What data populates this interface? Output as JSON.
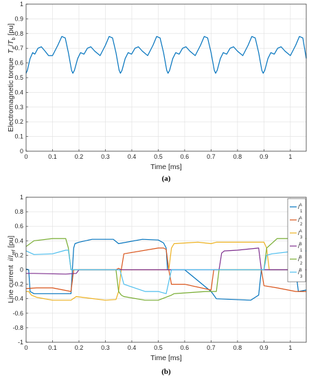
{
  "chart_data": [
    {
      "type": "line",
      "x_unit_label": "Time [ms]",
      "ylabel": "Electromagnetic torque",
      "ylabel_sym": "T",
      "ylabel_sub1": "e",
      "ylabel_slash": "/",
      "ylabel_sym2": "T",
      "ylabel_sub2": "b",
      "ylabel_unit": "[pu]",
      "caption": "(a)",
      "xlim": [
        0,
        1.06
      ],
      "ylim": [
        0,
        1
      ],
      "xticks": [
        "0",
        "0.1",
        "0.2",
        "0.3",
        "0.4",
        "0.5",
        "0.6",
        "0.7",
        "0.8",
        "0.9",
        "1"
      ],
      "yticks": [
        "0",
        "0.1",
        "0.2",
        "0.3",
        "0.4",
        "0.5",
        "0.6",
        "0.7",
        "0.8",
        "0.9",
        "1"
      ],
      "grid": true,
      "series": [
        {
          "color": "#0072BD",
          "x": [
            0.0,
            0.005,
            0.015,
            0.025,
            0.033,
            0.045,
            0.058,
            0.072,
            0.085,
            0.1,
            0.12,
            0.135,
            0.148,
            0.16,
            0.172,
            0.177,
            0.183,
            0.195,
            0.206,
            0.219,
            0.232,
            0.245,
            0.26,
            0.28,
            0.3,
            0.314,
            0.327,
            0.34,
            0.352,
            0.357,
            0.363,
            0.375,
            0.386,
            0.399,
            0.412,
            0.425,
            0.44,
            0.46,
            0.48,
            0.494,
            0.507,
            0.52,
            0.532,
            0.537,
            0.543,
            0.555,
            0.566,
            0.579,
            0.592,
            0.605,
            0.62,
            0.64,
            0.66,
            0.674,
            0.687,
            0.7,
            0.712,
            0.717,
            0.723,
            0.735,
            0.746,
            0.759,
            0.772,
            0.785,
            0.8,
            0.82,
            0.84,
            0.854,
            0.867,
            0.88,
            0.892,
            0.897,
            0.903,
            0.915,
            0.926,
            0.939,
            0.952,
            0.965,
            0.98,
            1.0,
            1.02,
            1.034,
            1.047,
            1.06
          ],
          "values": [
            0.53,
            0.55,
            0.63,
            0.67,
            0.66,
            0.7,
            0.71,
            0.68,
            0.65,
            0.65,
            0.72,
            0.78,
            0.77,
            0.67,
            0.55,
            0.53,
            0.55,
            0.63,
            0.67,
            0.66,
            0.7,
            0.71,
            0.68,
            0.65,
            0.72,
            0.78,
            0.77,
            0.67,
            0.55,
            0.53,
            0.55,
            0.63,
            0.67,
            0.66,
            0.7,
            0.71,
            0.68,
            0.65,
            0.72,
            0.78,
            0.77,
            0.67,
            0.55,
            0.53,
            0.55,
            0.63,
            0.67,
            0.66,
            0.7,
            0.71,
            0.68,
            0.65,
            0.72,
            0.78,
            0.77,
            0.67,
            0.55,
            0.53,
            0.55,
            0.63,
            0.67,
            0.66,
            0.7,
            0.71,
            0.68,
            0.65,
            0.72,
            0.78,
            0.77,
            0.67,
            0.55,
            0.53,
            0.55,
            0.63,
            0.67,
            0.66,
            0.7,
            0.71,
            0.68,
            0.65,
            0.72,
            0.78,
            0.77,
            0.63
          ]
        }
      ]
    },
    {
      "type": "line",
      "x_unit_label": "Time [ms]",
      "ylabel": "Line current",
      "ylabel_sym": "i",
      "ylabel_slash": "/",
      "ylabel_sym2": "I",
      "ylabel_sub2": "ref",
      "ylabel_unit": "[pu]",
      "caption": "(b)",
      "xlim": [
        0,
        1.06
      ],
      "ylim": [
        -1,
        1
      ],
      "xticks": [
        "0",
        "0.1",
        "0.2",
        "0.3",
        "0.4",
        "0.5",
        "0.6",
        "0.7",
        "0.8",
        "0.9",
        "1"
      ],
      "yticks": [
        "-1",
        "-0.8",
        "-0.6",
        "-0.4",
        "-0.2",
        "0",
        "0.2",
        "0.4",
        "0.6",
        "0.8",
        "1"
      ],
      "grid": true,
      "legend_position": "top-right",
      "series": [
        {
          "name": "iA1",
          "leg_sym": "i",
          "leg_sub_top": "A",
          "leg_sub_bot": "1",
          "color": "#0072BD",
          "x": [
            0.0,
            0.01,
            0.015,
            0.03,
            0.1,
            0.17,
            0.175,
            0.18,
            0.185,
            0.2,
            0.25,
            0.33,
            0.35,
            0.44,
            0.5,
            0.52,
            0.53,
            0.535,
            0.55,
            0.6,
            0.7,
            0.71,
            0.72,
            0.85,
            0.88,
            0.89,
            0.9,
            1.02,
            1.03,
            1.06
          ],
          "values": [
            0.01,
            0.0,
            -0.3,
            -0.33,
            -0.33,
            -0.33,
            0.0,
            0.3,
            0.36,
            0.38,
            0.42,
            0.42,
            0.36,
            0.42,
            0.41,
            0.37,
            0.3,
            0.0,
            0.0,
            0.0,
            -0.3,
            -0.35,
            -0.4,
            -0.42,
            -0.35,
            0.0,
            0.0,
            0.0,
            -0.3,
            -0.28
          ]
        },
        {
          "name": "iA2",
          "leg_sym": "i",
          "leg_sub_top": "A",
          "leg_sub_bot": "2",
          "color": "#D95319",
          "x": [
            0.0,
            0.04,
            0.1,
            0.17,
            0.18,
            0.19,
            0.2,
            0.3,
            0.34,
            0.35,
            0.36,
            0.37,
            0.5,
            0.52,
            0.53,
            0.54,
            0.55,
            0.6,
            0.7,
            0.71,
            0.72,
            0.73,
            0.74,
            0.88,
            0.89,
            0.9,
            0.95,
            1.02,
            1.06
          ],
          "values": [
            -0.26,
            -0.25,
            -0.25,
            -0.3,
            0.0,
            0.0,
            0.0,
            0.0,
            0.0,
            0.02,
            0.0,
            0.22,
            0.3,
            0.3,
            0.28,
            0.0,
            -0.2,
            -0.2,
            -0.28,
            0.0,
            0.0,
            0.0,
            0.0,
            0.0,
            0.0,
            -0.22,
            -0.25,
            -0.3,
            -0.3
          ]
        },
        {
          "name": "iA3",
          "leg_sym": "i",
          "leg_sub_top": "A",
          "leg_sub_bot": "3",
          "color": "#EDB120",
          "x": [
            0.0,
            0.01,
            0.02,
            0.04,
            0.1,
            0.17,
            0.19,
            0.3,
            0.34,
            0.35,
            0.36,
            0.5,
            0.53,
            0.54,
            0.55,
            0.56,
            0.65,
            0.7,
            0.72,
            0.88,
            0.9,
            0.91,
            0.92,
            1.0,
            1.06
          ],
          "values": [
            -0.3,
            -0.3,
            -0.35,
            -0.38,
            -0.42,
            -0.42,
            -0.37,
            -0.42,
            -0.41,
            -0.3,
            0.0,
            0.0,
            0.0,
            0.0,
            0.3,
            0.36,
            0.38,
            0.36,
            0.38,
            0.38,
            0.38,
            0.3,
            0.0,
            0.0,
            0.0
          ]
        },
        {
          "name": "iB1",
          "leg_sym": "i",
          "leg_sub_top": "B",
          "leg_sub_bot": "1",
          "color": "#7E2F8E",
          "x": [
            0.0,
            0.03,
            0.15,
            0.19,
            0.2,
            0.3,
            0.35,
            0.355,
            0.5,
            0.55,
            0.72,
            0.73,
            0.74,
            0.75,
            0.8,
            0.88,
            0.89,
            0.9,
            1.06
          ],
          "values": [
            -0.05,
            -0.05,
            -0.06,
            -0.05,
            0.0,
            0.0,
            0.0,
            0.0,
            0.0,
            0.0,
            0.0,
            0.0,
            0.23,
            0.26,
            0.27,
            0.3,
            0.0,
            0.0,
            0.0
          ]
        },
        {
          "name": "iB2",
          "leg_sym": "i",
          "leg_sub_top": "B",
          "leg_sub_bot": "2",
          "color": "#77AC30",
          "x": [
            0.0,
            0.03,
            0.1,
            0.15,
            0.16,
            0.17,
            0.18,
            0.3,
            0.34,
            0.35,
            0.36,
            0.37,
            0.45,
            0.5,
            0.55,
            0.56,
            0.68,
            0.72,
            0.73,
            0.9,
            0.91,
            0.95,
            1.06
          ],
          "values": [
            0.32,
            0.4,
            0.43,
            0.43,
            0.3,
            0.0,
            0.0,
            0.0,
            0.0,
            -0.3,
            -0.35,
            -0.37,
            -0.42,
            -0.42,
            -0.35,
            -0.33,
            -0.3,
            -0.3,
            0.0,
            0.0,
            0.3,
            0.43,
            0.43
          ]
        },
        {
          "name": "iB3",
          "leg_sym": "i",
          "leg_sub_top": "B",
          "leg_sub_bot": "3",
          "color": "#4DBEEE",
          "x": [
            0.0,
            0.03,
            0.1,
            0.15,
            0.16,
            0.17,
            0.35,
            0.355,
            0.37,
            0.45,
            0.5,
            0.53,
            0.55,
            0.7,
            0.72,
            0.73,
            0.9,
            0.91,
            0.93,
            1.0,
            1.06
          ],
          "values": [
            0.26,
            0.21,
            0.22,
            0.27,
            0.27,
            0.0,
            0.0,
            0.0,
            -0.2,
            -0.3,
            -0.3,
            -0.33,
            0.0,
            0.0,
            0.0,
            0.0,
            0.0,
            0.2,
            0.22,
            0.25,
            0.26
          ]
        }
      ]
    }
  ]
}
